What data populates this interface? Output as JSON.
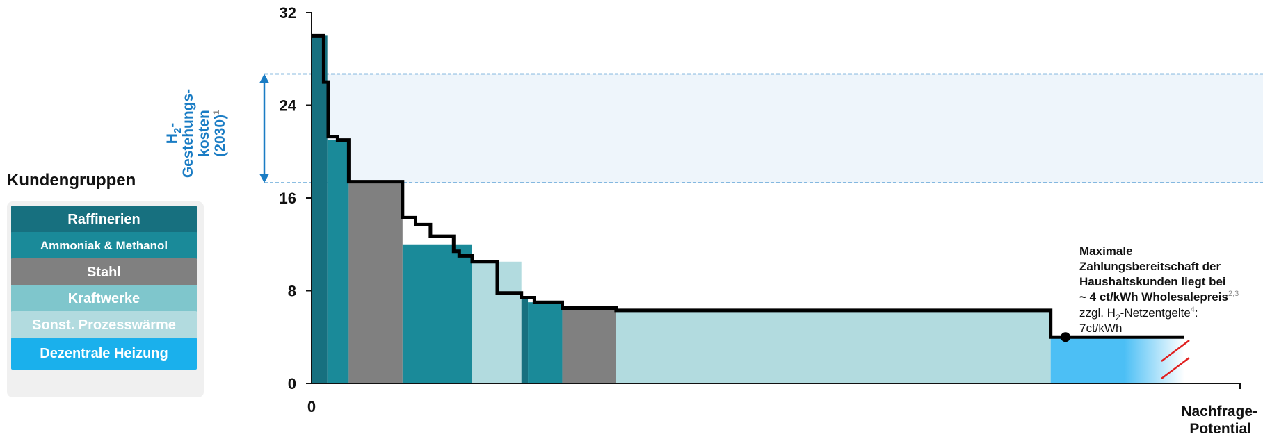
{
  "legend": {
    "title": "Kundengruppen",
    "items": [
      {
        "label": "Raffinerien",
        "color": "#17707f"
      },
      {
        "label": "Ammoniak & Methanol",
        "color": "#1a8a99"
      },
      {
        "label": "Stahl",
        "color": "#808080"
      },
      {
        "label": "Kraftwerke",
        "color": "#7fc6cc"
      },
      {
        "label": "Sonst. Prozesswärme",
        "color": "#b2dbdf"
      },
      {
        "label": "Dezentrale Heizung",
        "color": "#1ab0ec"
      }
    ]
  },
  "band": {
    "line1": "H",
    "line1_sub": "2",
    "line1_suffix": "-",
    "line2": "Gestehungs-",
    "line3": "kosten",
    "line4": "(2030)",
    "line4_sup": "1",
    "color": "#1a7cc4",
    "range": [
      17.3,
      26.7
    ]
  },
  "annotation": {
    "line1": "Maximale",
    "line2": "Zahlungsbereitschaft der",
    "line3": "Haushaltskunden liegt bei",
    "line4": "~ 4 ct/kWh Wholesalepreis",
    "line4_sup": "2,3",
    "line5_a": "zzgl. H",
    "line5_sub": "2",
    "line5_b": "-Netzentgelte",
    "line5_sup": "4",
    "line5_c": ":",
    "line6": "7ct/kWh"
  },
  "chart_data": {
    "type": "area",
    "xlabel_line1": "Nachfrage-",
    "xlabel_line2": "Potential",
    "ylabel": "",
    "ylim": [
      0,
      32
    ],
    "yticks": [
      "0",
      "8",
      "16",
      "24",
      "32"
    ],
    "x_origin_label": "0",
    "segments": [
      {
        "group": "Raffinerien",
        "x0": 0,
        "x1": 1.7,
        "value": 30.0,
        "color": "#17707f"
      },
      {
        "group": "Ammoniak & Methanol",
        "x0": 1.7,
        "x1": 4.0,
        "value": 21.0,
        "color": "#1a8a99"
      },
      {
        "group": "Stahl",
        "x0": 4.0,
        "x1": 9.8,
        "value": 17.4,
        "color": "#808080"
      },
      {
        "group": "Ammoniak & Methanol",
        "x0": 9.8,
        "x1": 17.3,
        "value": 12.0,
        "color": "#1a8a99"
      },
      {
        "group": "Sonst. Prozesswärme",
        "x0": 17.3,
        "x1": 22.6,
        "value": 10.5,
        "color": "#b2dbdf"
      },
      {
        "group": "Raffinerien",
        "x0": 22.6,
        "x1": 23.3,
        "value": 7.5,
        "color": "#17707f"
      },
      {
        "group": "Ammoniak & Methanol",
        "x0": 23.3,
        "x1": 27.0,
        "value": 7.0,
        "color": "#1a8a99"
      },
      {
        "group": "Stahl",
        "x0": 27.0,
        "x1": 32.8,
        "value": 6.5,
        "color": "#808080"
      },
      {
        "group": "Sonst. Prozesswärme",
        "x0": 32.8,
        "x1": 79.6,
        "value": 6.3,
        "color": "#b2dbdf"
      },
      {
        "group": "Dezentrale Heizung",
        "x0": 79.6,
        "x1": 94.0,
        "value": 4.0,
        "color": "#4cbff5"
      }
    ],
    "curve": [
      [
        0,
        30.0
      ],
      [
        1.3,
        30.0
      ],
      [
        1.3,
        26.0
      ],
      [
        1.8,
        26.0
      ],
      [
        1.8,
        21.3
      ],
      [
        2.8,
        21.3
      ],
      [
        2.8,
        21.0
      ],
      [
        4.0,
        21.0
      ],
      [
        4.0,
        17.4
      ],
      [
        9.8,
        17.4
      ],
      [
        9.8,
        14.3
      ],
      [
        11.2,
        14.3
      ],
      [
        11.2,
        13.7
      ],
      [
        12.8,
        13.7
      ],
      [
        12.8,
        12.7
      ],
      [
        15.3,
        12.7
      ],
      [
        15.3,
        11.4
      ],
      [
        15.9,
        11.4
      ],
      [
        15.9,
        11.0
      ],
      [
        17.3,
        11.0
      ],
      [
        17.3,
        10.5
      ],
      [
        20.0,
        10.5
      ],
      [
        20.0,
        7.8
      ],
      [
        22.6,
        7.8
      ],
      [
        22.6,
        7.4
      ],
      [
        24.0,
        7.4
      ],
      [
        24.0,
        7.0
      ],
      [
        27.0,
        7.0
      ],
      [
        27.0,
        6.5
      ],
      [
        32.8,
        6.5
      ],
      [
        32.8,
        6.3
      ],
      [
        79.6,
        6.3
      ],
      [
        79.6,
        4.0
      ],
      [
        94.0,
        4.0
      ]
    ],
    "marker": [
      81.2,
      4.0
    ],
    "xmax": 100
  }
}
